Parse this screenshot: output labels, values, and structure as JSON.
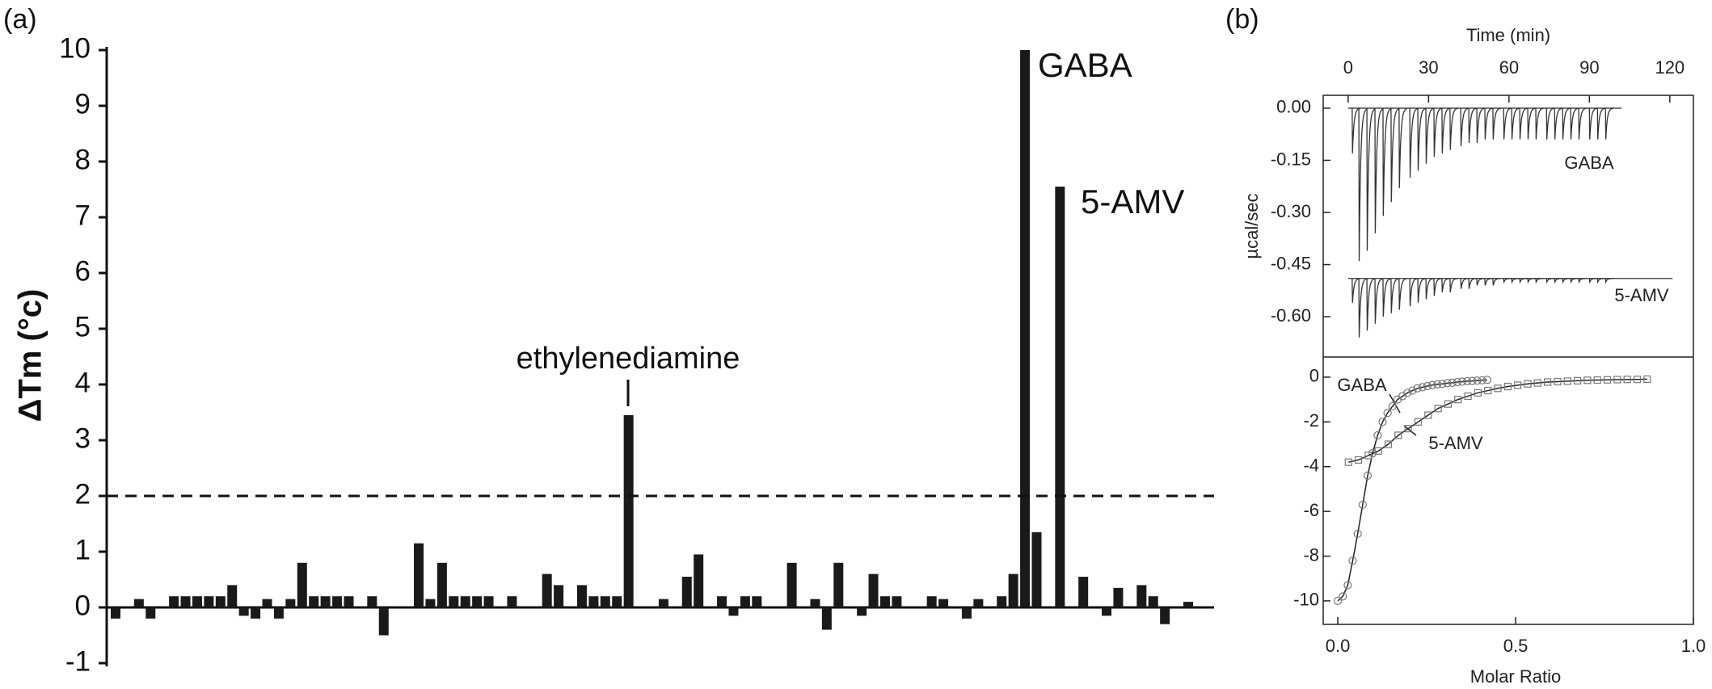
{
  "chart_data": [
    {
      "type": "bar",
      "panel": "(a)",
      "ylabel": "ΔTm (°c)",
      "color": "#1a1a1a",
      "values": [
        -0.2,
        0,
        0.15,
        -0.2,
        0,
        0.2,
        0.2,
        0.2,
        0.2,
        0.2,
        0.4,
        -0.15,
        -0.2,
        0.15,
        -0.2,
        0.15,
        0.8,
        0.2,
        0.2,
        0.2,
        0.2,
        0,
        0.2,
        -0.5,
        0,
        0,
        1.15,
        0.15,
        0.8,
        0.2,
        0.2,
        0.2,
        0.2,
        0,
        0.2,
        0,
        0,
        0.6,
        0.4,
        0,
        0.4,
        0.2,
        0.2,
        0.2,
        3.45,
        0,
        0,
        0.15,
        0,
        0.55,
        0.95,
        0,
        0.2,
        -0.15,
        0.2,
        0.2,
        0,
        0,
        0.8,
        0,
        0.15,
        -0.4,
        0.8,
        0,
        -0.15,
        0.6,
        0.2,
        0.2,
        0,
        0,
        0.2,
        0.15,
        0,
        -0.2,
        0.15,
        0,
        0.2,
        0.6,
        10,
        1.35,
        0,
        7.55,
        0,
        0.55,
        0,
        -0.15,
        0.35,
        0,
        0.4,
        0.2,
        -0.3,
        0,
        0.1
      ],
      "ylim": [
        -1,
        10
      ],
      "yticks": [
        -1,
        0,
        1,
        2,
        3,
        4,
        5,
        6,
        7,
        8,
        9,
        10
      ],
      "threshold": 2,
      "annotations": [
        "ethylenediamine",
        "GABA",
        "5-AMV"
      ]
    },
    {
      "type": "spike",
      "panel": "(b)",
      "xlabel": "Time (min)",
      "ylabel": "µcal/sec",
      "xlim": [
        -9.3,
        128.8
      ],
      "ylim": [
        -0.716,
        0.037
      ],
      "xticks": [
        0,
        30,
        60,
        90,
        120
      ],
      "yticks": [
        {
          "value": 0,
          "label": "0.00"
        },
        {
          "value": -0.15,
          "label": "-0.15"
        },
        {
          "value": -0.3,
          "label": "-0.30"
        },
        {
          "value": -0.45,
          "label": "-0.45"
        },
        {
          "value": -0.6,
          "label": "-0.60"
        }
      ],
      "series": [
        {
          "name": "GABA",
          "color": "#333333",
          "start": 0,
          "end": 102,
          "baseline": 0,
          "x": [
            1.5,
            4,
            7,
            10,
            13,
            16,
            19,
            23,
            26,
            29,
            32,
            35,
            38,
            42,
            45,
            48,
            51,
            54,
            58,
            61,
            64,
            67,
            70,
            74,
            77,
            80,
            83,
            86,
            90,
            93,
            96
          ],
          "values": [
            -0.13,
            -0.44,
            -0.41,
            -0.36,
            -0.31,
            -0.27,
            -0.23,
            -0.2,
            -0.18,
            -0.16,
            -0.14,
            -0.13,
            -0.12,
            -0.11,
            -0.1,
            -0.1,
            -0.09,
            -0.09,
            -0.09,
            -0.09,
            -0.09,
            -0.09,
            -0.09,
            -0.09,
            -0.09,
            -0.09,
            -0.09,
            -0.09,
            -0.09,
            -0.09,
            -0.09
          ]
        },
        {
          "name": "5-AMV",
          "color": "#333333",
          "start": 0,
          "end": 121,
          "baseline": -0.49,
          "x": [
            1.5,
            4,
            7,
            10,
            13,
            16,
            19,
            23,
            26,
            29,
            32,
            35,
            38,
            42,
            45,
            48,
            51,
            54,
            58,
            61,
            64,
            67,
            70,
            74,
            77,
            80,
            83,
            86,
            90,
            93,
            96
          ],
          "values": [
            -0.56,
            -0.66,
            -0.64,
            -0.62,
            -0.6,
            -0.59,
            -0.58,
            -0.57,
            -0.56,
            -0.55,
            -0.54,
            -0.53,
            -0.53,
            -0.52,
            -0.52,
            -0.51,
            -0.51,
            -0.51,
            -0.5,
            -0.5,
            -0.5,
            -0.5,
            -0.5,
            -0.5,
            -0.5,
            -0.5,
            -0.5,
            -0.5,
            -0.5,
            -0.5,
            -0.5
          ]
        }
      ]
    },
    {
      "type": "scatter",
      "xlabel": "Molar Ratio",
      "xlim": [
        -0.041,
        1.0
      ],
      "ylim": [
        -11.05,
        0.9
      ],
      "xticks": [
        {
          "value": 0,
          "label": "0.0"
        },
        0.5,
        {
          "value": 1,
          "label": "1.0"
        }
      ],
      "yticks": [
        0,
        -2,
        -4,
        -6,
        -8,
        -10
      ],
      "series": [
        {
          "name": "GABA",
          "marker": "circle",
          "color": "#777777",
          "x": [
            0,
            0.014,
            0.028,
            0.042,
            0.056,
            0.07,
            0.084,
            0.098,
            0.112,
            0.126,
            0.14,
            0.154,
            0.168,
            0.182,
            0.196,
            0.21,
            0.224,
            0.238,
            0.252,
            0.266,
            0.28,
            0.294,
            0.308,
            0.322,
            0.336,
            0.35,
            0.364,
            0.378,
            0.392,
            0.406,
            0.42
          ],
          "values": [
            -10,
            -9.8,
            -9.3,
            -8.2,
            -7,
            -5.7,
            -4.4,
            -3.4,
            -2.6,
            -2,
            -1.6,
            -1.3,
            -1,
            -0.85,
            -0.7,
            -0.6,
            -0.5,
            -0.45,
            -0.4,
            -0.35,
            -0.32,
            -0.3,
            -0.27,
            -0.25,
            -0.22,
            -0.2,
            -0.18,
            -0.17,
            -0.15,
            -0.14,
            -0.12
          ]
        },
        {
          "name": "5-AMV",
          "marker": "square",
          "color": "#777777",
          "x": [
            0.03,
            0.058,
            0.086,
            0.114,
            0.142,
            0.17,
            0.198,
            0.226,
            0.254,
            0.282,
            0.31,
            0.338,
            0.366,
            0.394,
            0.422,
            0.45,
            0.478,
            0.506,
            0.534,
            0.562,
            0.59,
            0.618,
            0.646,
            0.674,
            0.702,
            0.73,
            0.758,
            0.786,
            0.814,
            0.842,
            0.87
          ],
          "values": [
            -3.8,
            -3.7,
            -3.5,
            -3.3,
            -3,
            -2.6,
            -2.3,
            -2,
            -1.7,
            -1.4,
            -1.2,
            -1,
            -0.85,
            -0.7,
            -0.6,
            -0.5,
            -0.42,
            -0.36,
            -0.3,
            -0.26,
            -0.22,
            -0.2,
            -0.18,
            -0.16,
            -0.14,
            -0.13,
            -0.12,
            -0.11,
            -0.1,
            -0.1,
            -0.09
          ]
        }
      ]
    }
  ]
}
